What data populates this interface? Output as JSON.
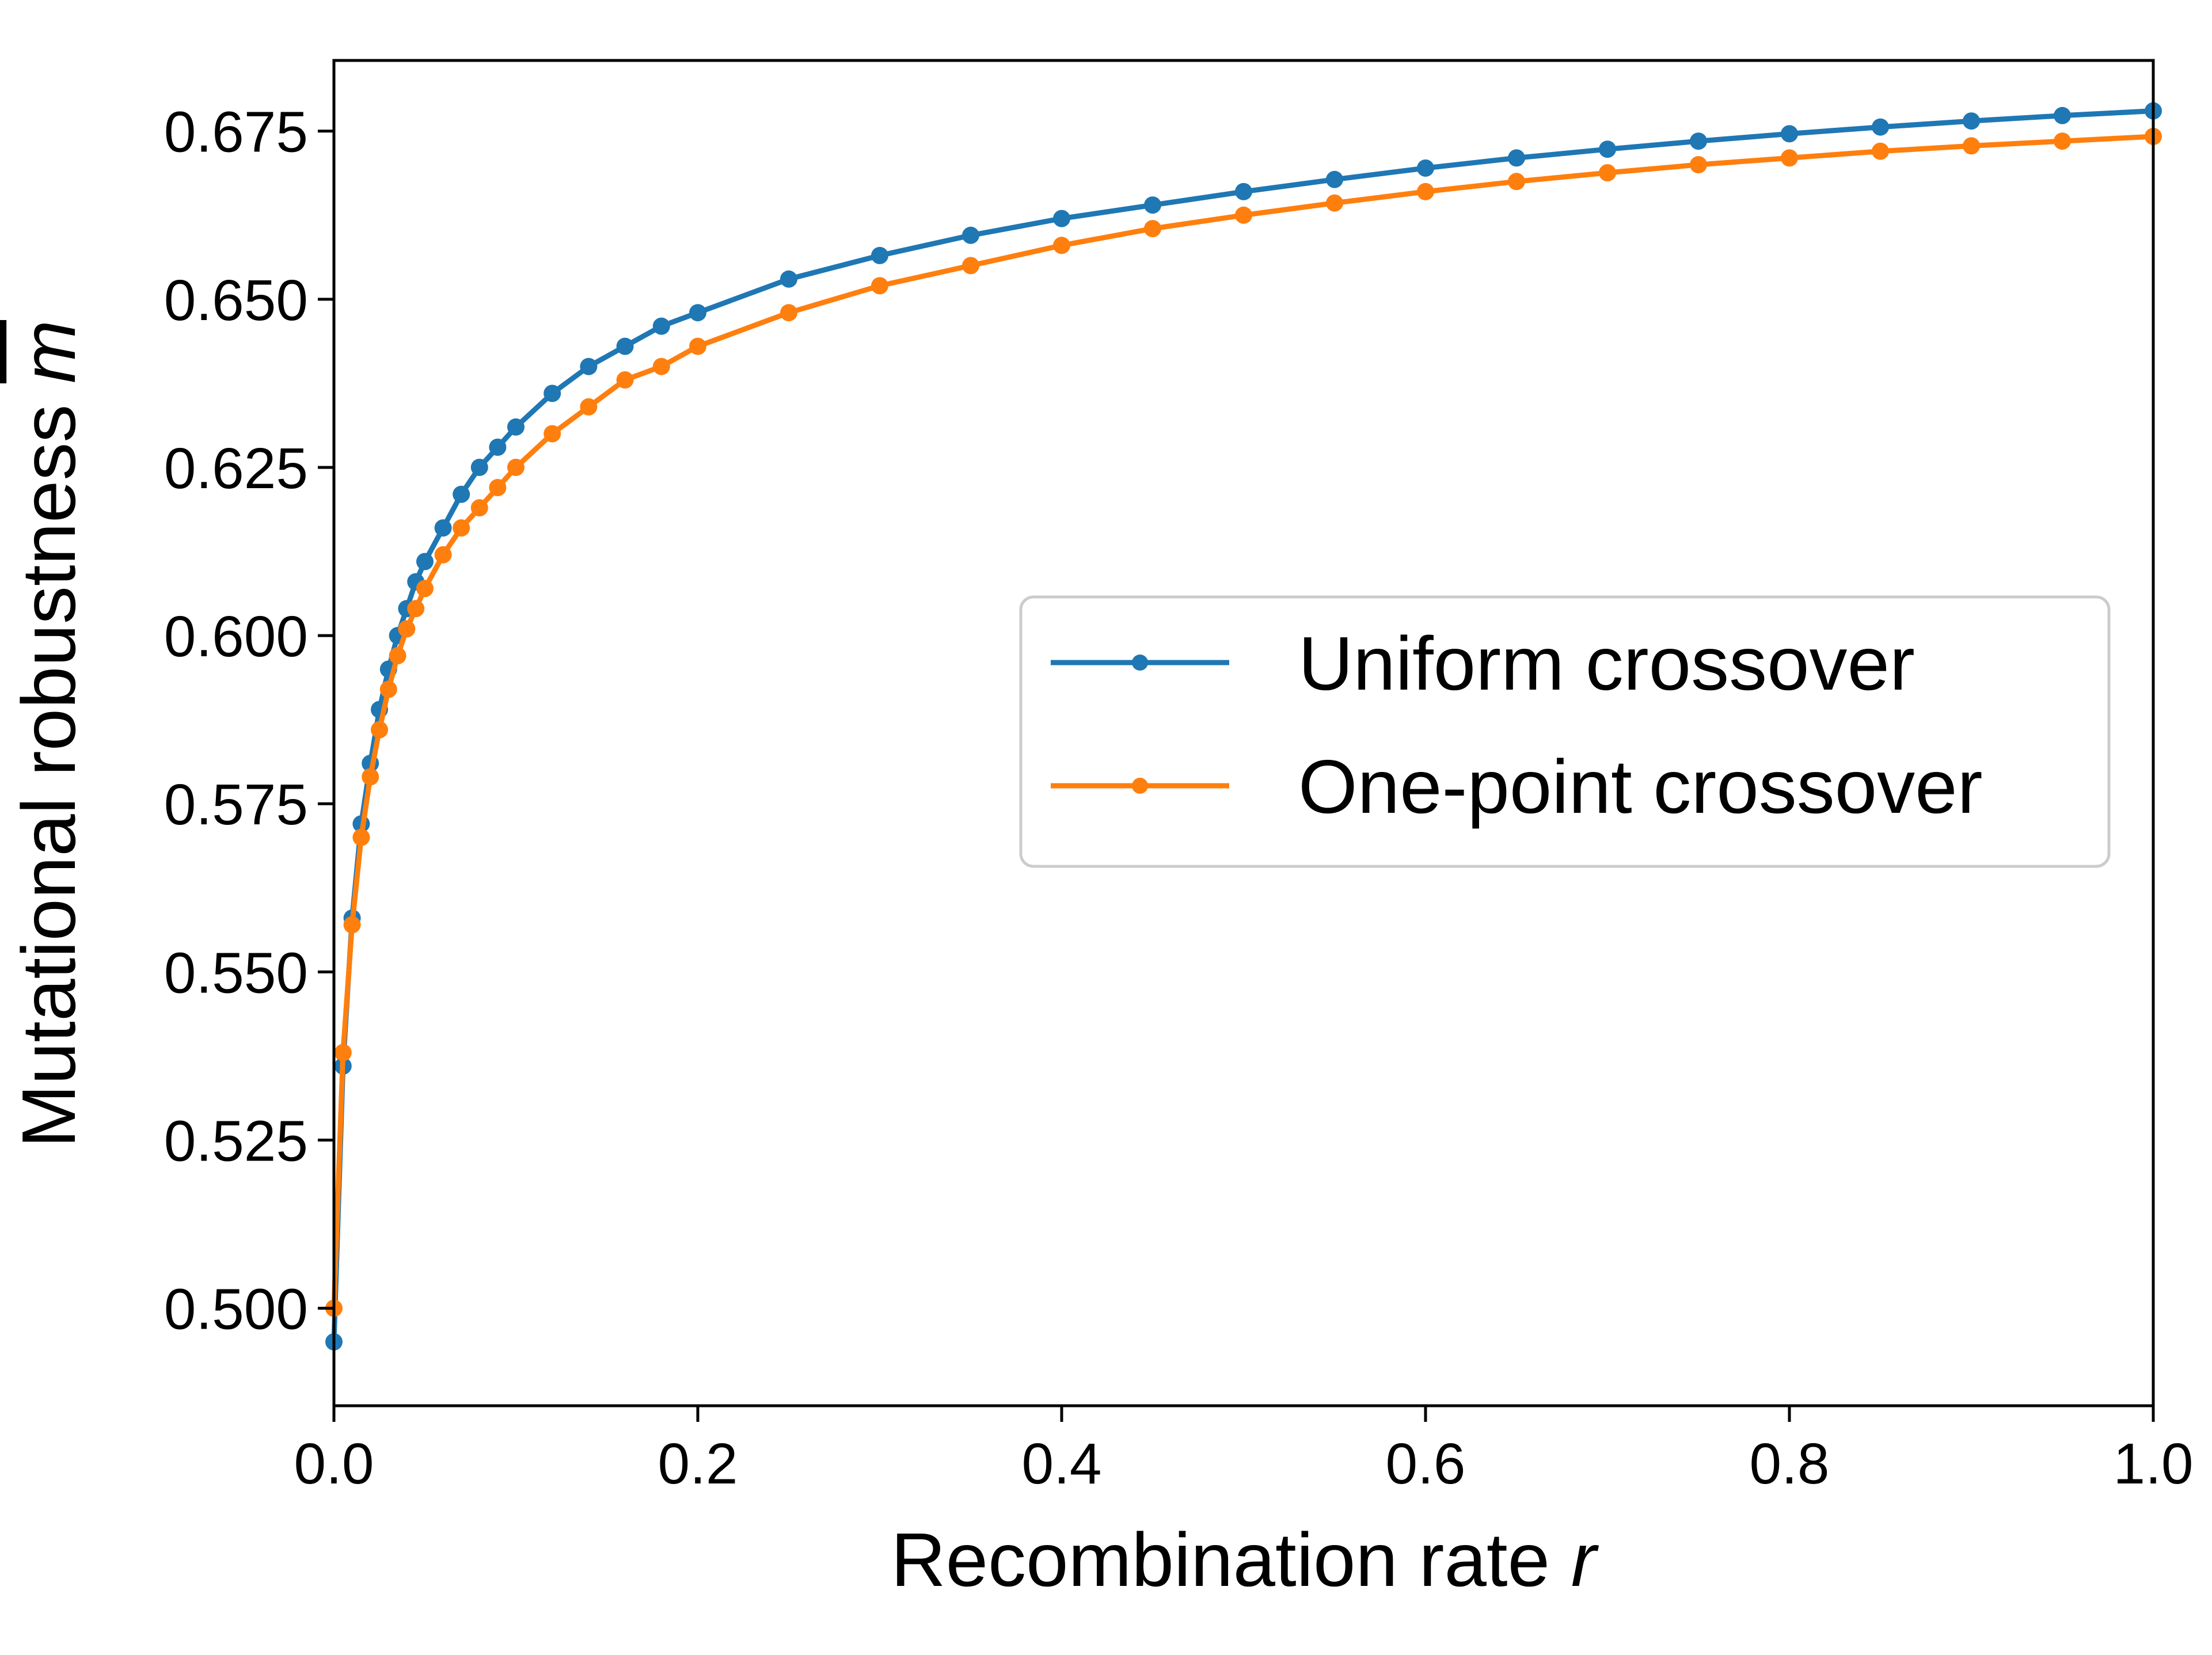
{
  "chart_data": {
    "type": "line",
    "xlabel": "Recombination rate",
    "xlabel_var": "r",
    "ylabel": "Mutational robustness",
    "ylabel_var": "m",
    "xlim": [
      0.0,
      1.0
    ],
    "ylim": [
      0.4855,
      0.6855
    ],
    "xticks": [
      0.0,
      0.2,
      0.4,
      0.6,
      0.8,
      1.0
    ],
    "xtick_labels": [
      "0.0",
      "0.2",
      "0.4",
      "0.6",
      "0.8",
      "1.0"
    ],
    "yticks": [
      0.5,
      0.525,
      0.55,
      0.575,
      0.6,
      0.625,
      0.65,
      0.675
    ],
    "ytick_labels": [
      "0.500",
      "0.525",
      "0.550",
      "0.575",
      "0.600",
      "0.625",
      "0.650",
      "0.675"
    ],
    "grid": false,
    "legend_position": "center-right",
    "x": [
      0.0,
      0.005,
      0.01,
      0.015,
      0.02,
      0.025,
      0.03,
      0.035,
      0.04,
      0.045,
      0.05,
      0.06,
      0.07,
      0.08,
      0.09,
      0.1,
      0.12,
      0.14,
      0.16,
      0.18,
      0.2,
      0.25,
      0.3,
      0.35,
      0.4,
      0.45,
      0.5,
      0.55,
      0.6,
      0.65,
      0.7,
      0.75,
      0.8,
      0.85,
      0.9,
      0.95,
      1.0
    ],
    "series": [
      {
        "name": "Uniform crossover",
        "color": "#1f77b4",
        "values": [
          0.495,
          0.536,
          0.558,
          0.572,
          0.581,
          0.589,
          0.595,
          0.6,
          0.604,
          0.608,
          0.611,
          0.616,
          0.621,
          0.625,
          0.628,
          0.631,
          0.636,
          0.64,
          0.643,
          0.646,
          0.648,
          0.653,
          0.6565,
          0.6595,
          0.662,
          0.664,
          0.666,
          0.6678,
          0.6695,
          0.671,
          0.6723,
          0.6735,
          0.6746,
          0.6756,
          0.6765,
          0.6773,
          0.678
        ]
      },
      {
        "name": "One-point crossover",
        "color": "#ff7f0e",
        "values": [
          0.5,
          0.538,
          0.557,
          0.57,
          0.579,
          0.586,
          0.592,
          0.597,
          0.601,
          0.604,
          0.607,
          0.612,
          0.616,
          0.619,
          0.622,
          0.625,
          0.63,
          0.634,
          0.638,
          0.64,
          0.643,
          0.648,
          0.652,
          0.655,
          0.658,
          0.6605,
          0.6625,
          0.6643,
          0.666,
          0.6675,
          0.6688,
          0.67,
          0.671,
          0.672,
          0.6728,
          0.6735,
          0.6742
        ]
      }
    ]
  }
}
